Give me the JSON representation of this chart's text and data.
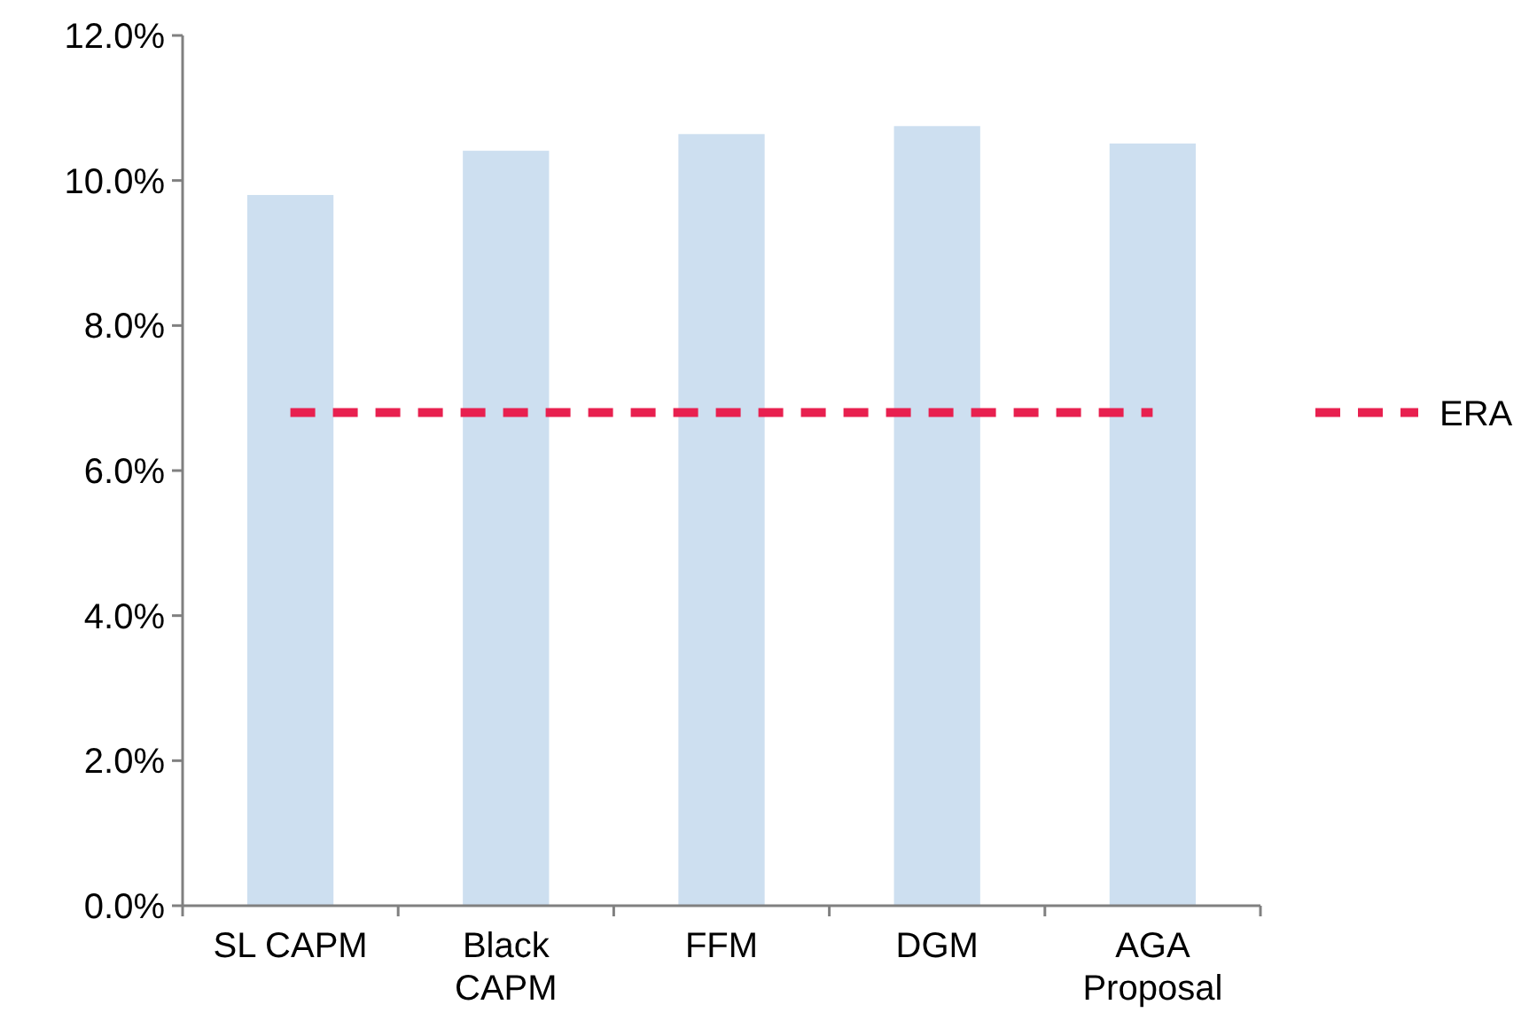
{
  "chart_data": {
    "type": "bar",
    "categories": [
      "SL CAPM",
      "Black CAPM",
      "FFM",
      "DGM",
      "AGA Proposal"
    ],
    "series": [
      {
        "color": "#cddff0",
        "values": [
          9.8,
          10.41,
          10.64,
          10.75,
          10.51
        ]
      },
      {
        "type": "line",
        "name": "ERA",
        "color": "#e8204f",
        "values": [
          6.8,
          6.8,
          6.8,
          6.8,
          6.8
        ],
        "line_style": "dashed",
        "marker": "none"
      }
    ],
    "ylim": [
      0,
      12
    ],
    "yticks": [
      {
        "value": 0,
        "label": "0.0%"
      },
      {
        "value": 2,
        "label": "2.0%"
      },
      {
        "value": 4,
        "label": "4.0%"
      },
      {
        "value": 6,
        "label": "6.0%"
      },
      {
        "value": 8,
        "label": "8.0%"
      },
      {
        "value": 10,
        "label": "10.0%"
      },
      {
        "value": 12,
        "label": "12.0%"
      }
    ],
    "grid": false,
    "legend": "right"
  }
}
